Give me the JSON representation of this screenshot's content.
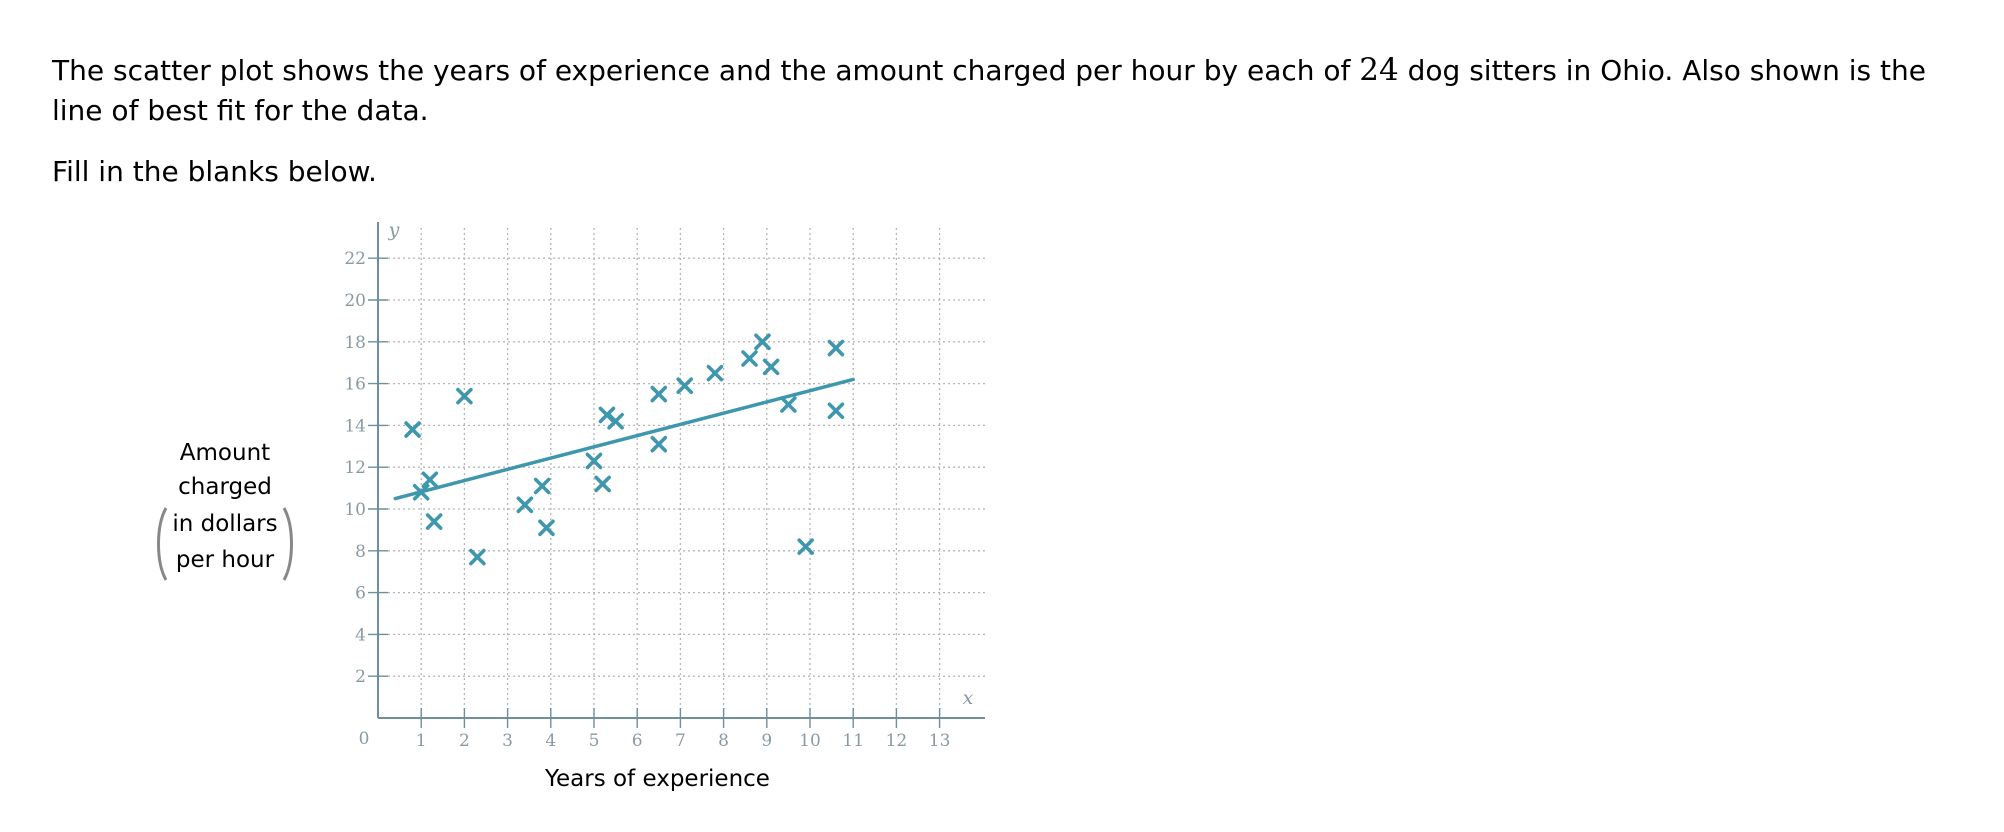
{
  "prompt": {
    "text_before": "The scatter plot shows the years of experience and the amount charged per hour by each of ",
    "count": "24",
    "text_after": " dog sitters in Ohio. Also shown is the line of best fit for the data.",
    "instruction": "Fill in the blanks below."
  },
  "colors": {
    "marker": "#3f97ad",
    "fit_line": "#3f97ad",
    "axis": "#6f8f9d",
    "grid": "#b5b5b5",
    "tick_text": "#8a9aa2"
  },
  "chart_data": {
    "type": "scatter",
    "xlabel": "Years of experience",
    "ylabel_lines": [
      "Amount charged",
      "in dollars",
      "per hour"
    ],
    "x_axis_name": "x",
    "y_axis_name": "y",
    "origin_label": "0",
    "xlim": [
      0,
      14
    ],
    "ylim": [
      0,
      23.5
    ],
    "x_ticks": [
      1,
      2,
      3,
      4,
      5,
      6,
      7,
      8,
      9,
      10,
      11,
      12,
      13
    ],
    "y_ticks": [
      2,
      4,
      6,
      8,
      10,
      12,
      14,
      16,
      18,
      20,
      22
    ],
    "grid": true,
    "grid_style": "dotted",
    "marker": "x",
    "series": [
      {
        "points": [
          [
            0.8,
            13.8
          ],
          [
            1.0,
            10.8
          ],
          [
            1.2,
            11.4
          ],
          [
            1.3,
            9.4
          ],
          [
            2.0,
            15.4
          ],
          [
            2.3,
            7.7
          ],
          [
            3.4,
            10.2
          ],
          [
            3.8,
            11.1
          ],
          [
            3.9,
            9.1
          ],
          [
            5.0,
            12.3
          ],
          [
            5.2,
            11.2
          ],
          [
            5.3,
            14.5
          ],
          [
            5.5,
            14.2
          ],
          [
            6.5,
            15.5
          ],
          [
            6.5,
            13.1
          ],
          [
            7.1,
            15.9
          ],
          [
            7.8,
            16.5
          ],
          [
            8.6,
            17.2
          ],
          [
            8.9,
            18.0
          ],
          [
            9.1,
            16.8
          ],
          [
            9.5,
            15.0
          ],
          [
            9.9,
            8.2
          ],
          [
            10.6,
            17.7
          ],
          [
            10.6,
            14.7
          ]
        ]
      }
    ],
    "fit_line": {
      "from": [
        0.4,
        10.5
      ],
      "to": [
        11.0,
        16.2
      ]
    }
  }
}
